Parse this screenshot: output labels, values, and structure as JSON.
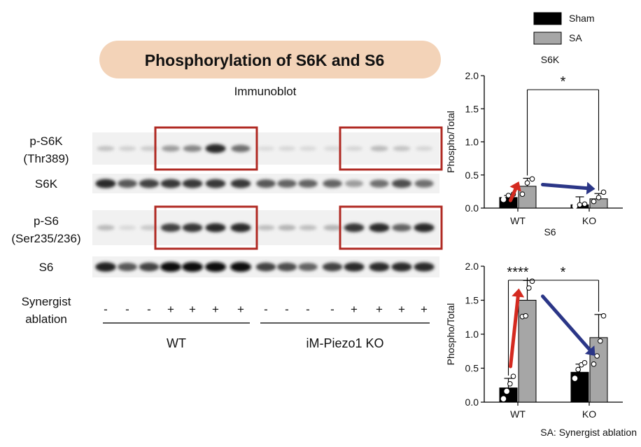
{
  "title": "Phosphorylation of S6K and S6",
  "blot": {
    "heading": "Immunoblot",
    "rows": [
      {
        "label_lines": [
          "p-S6K",
          "(Thr389)"
        ],
        "intensities": [
          0.18,
          0.12,
          0.14,
          0.35,
          0.45,
          0.85,
          0.55,
          0.07,
          0.09,
          0.08,
          0.08,
          0.1,
          0.22,
          0.18,
          0.1
        ],
        "highlighted": true
      },
      {
        "label_lines": [
          "S6K"
        ],
        "intensities": [
          0.85,
          0.65,
          0.75,
          0.8,
          0.8,
          0.8,
          0.8,
          0.65,
          0.6,
          0.6,
          0.6,
          0.35,
          0.55,
          0.7,
          0.55
        ],
        "highlighted": false
      },
      {
        "label_lines": [
          "p-S6",
          "(Ser235/236)"
        ],
        "intensities": [
          0.22,
          0.08,
          0.15,
          0.75,
          0.8,
          0.85,
          0.85,
          0.2,
          0.25,
          0.2,
          0.25,
          0.8,
          0.85,
          0.6,
          0.85
        ],
        "highlighted": true
      },
      {
        "label_lines": [
          "S6"
        ],
        "intensities": [
          0.9,
          0.65,
          0.75,
          1.0,
          1.0,
          1.0,
          1.0,
          0.75,
          0.7,
          0.6,
          0.75,
          0.85,
          0.85,
          0.85,
          0.85
        ],
        "highlighted": false
      }
    ],
    "treatment_label_lines": [
      "Synergist",
      "ablation"
    ],
    "treatment_signs": [
      "-",
      "-",
      "-",
      "+",
      "+",
      "+",
      "+",
      "-",
      "-",
      "-",
      "-",
      "+",
      "+",
      "+",
      "+"
    ],
    "groups": [
      {
        "name": "WT"
      },
      {
        "name": "iM-Piezo1 KO"
      }
    ],
    "highlight_color": "#b02a23"
  },
  "legend": {
    "items": [
      {
        "name": "Sham",
        "color": "#000000"
      },
      {
        "name": "SA",
        "color": "#a6a6a6"
      }
    ]
  },
  "footnote": "SA: Synergist ablation",
  "chart_data": [
    {
      "type": "bar",
      "title": "S6K",
      "ylabel": "Phospho/Total",
      "categories": [
        "WT",
        "KO"
      ],
      "ylim": [
        0,
        2.0
      ],
      "yticks": [
        "0.0",
        "0.5",
        "1.0",
        "1.5",
        "2.0"
      ],
      "series": [
        {
          "name": "Sham",
          "color": "#000000",
          "values": [
            0.16,
            0.05
          ],
          "error": [
            0.03,
            0.12
          ],
          "points": [
            [
              0.13,
              0.19,
              0.21
            ],
            [
              0.03,
              0.05,
              0.06
            ]
          ]
        },
        {
          "name": "SA",
          "color": "#a6a6a6",
          "values": [
            0.33,
            0.14
          ],
          "error": [
            0.12,
            0.08
          ],
          "points": [
            [
              0.21,
              0.38,
              0.44
            ],
            [
              0.1,
              0.16,
              0.24
            ]
          ]
        }
      ],
      "arrows": [
        {
          "color": "#d42a20",
          "direction": "up"
        },
        {
          "color": "#2b3687",
          "direction": "down-right"
        }
      ],
      "significance": [
        {
          "label": "*",
          "between": [
            "WT SA",
            "KO SA"
          ]
        }
      ]
    },
    {
      "type": "bar",
      "title": "S6",
      "ylabel": "Phospho/Total",
      "categories": [
        "WT",
        "KO"
      ],
      "ylim": [
        0,
        2.0
      ],
      "yticks": [
        "0.0",
        "0.5",
        "1.0",
        "1.5",
        "2.0"
      ],
      "series": [
        {
          "name": "Sham",
          "color": "#000000",
          "values": [
            0.21,
            0.44
          ],
          "error": [
            0.14,
            0.12
          ],
          "points": [
            [
              0.05,
              0.16,
              0.27,
              0.38
            ],
            [
              0.35,
              0.48,
              0.55,
              0.58
            ]
          ]
        },
        {
          "name": "SA",
          "color": "#a6a6a6",
          "values": [
            1.5,
            0.95
          ],
          "error": [
            0.29,
            0.34
          ],
          "points": [
            [
              1.26,
              1.27,
              1.68,
              1.78
            ],
            [
              0.56,
              0.68,
              0.9,
              1.27
            ]
          ]
        }
      ],
      "arrows": [
        {
          "color": "#d42a20",
          "direction": "up"
        },
        {
          "color": "#2b3687",
          "direction": "down-right"
        }
      ],
      "significance": [
        {
          "label": "****",
          "between": [
            "WT Sham",
            "WT SA"
          ]
        },
        {
          "label": "*",
          "between": [
            "WT SA",
            "KO SA"
          ]
        }
      ]
    }
  ]
}
